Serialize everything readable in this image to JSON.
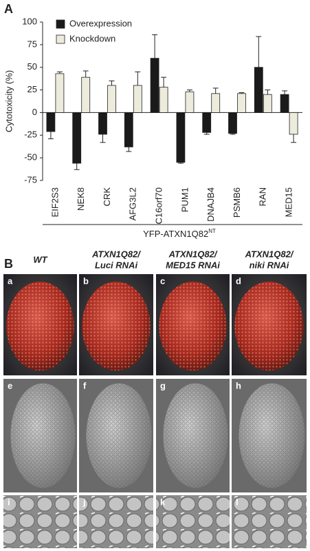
{
  "panel_a_label": "A",
  "chart_data": {
    "type": "bar",
    "ylabel": "Cytotoxicity (%)",
    "xlabel": "YFP-ATXN1Q82",
    "xlabel_superscript": "NT",
    "categories": [
      "EIF2S3",
      "NEK8",
      "CRK",
      "AFG3L2",
      "C16orf70",
      "PUM1",
      "DNAJB4",
      "PSMB6",
      "RAN",
      "MED15"
    ],
    "series": [
      {
        "name": "Overexpression",
        "color": "#1a1a1a",
        "values": [
          -21,
          -56,
          -24,
          -38,
          60,
          -55,
          -22,
          -23,
          50,
          20
        ],
        "errors": [
          8,
          7,
          9,
          5,
          26,
          1,
          2,
          1,
          34,
          4
        ]
      },
      {
        "name": "Knockdown",
        "color": "#ecebdc",
        "values": [
          43,
          39,
          30,
          30,
          28,
          23,
          21,
          21,
          20,
          -24
        ],
        "errors": [
          2,
          7,
          5,
          15,
          11,
          2,
          6,
          1,
          5,
          9
        ]
      }
    ],
    "ylim": [
      -75,
      100
    ],
    "yticks": [
      -75,
      -50,
      -25,
      0,
      25,
      50,
      75,
      100
    ],
    "legend": "upper left"
  },
  "panel_b": {
    "label": "B",
    "columns": [
      [
        "WT"
      ],
      [
        "ATXN1Q82/",
        "Luci RNAi"
      ],
      [
        "ATXN1Q82/",
        "MED15 RNAi"
      ],
      [
        "ATXN1Q82/",
        "niki RNAi"
      ]
    ],
    "tiles": [
      "a",
      "b",
      "c",
      "d",
      "e",
      "f",
      "g",
      "h",
      "i",
      "j",
      "k",
      "l"
    ]
  }
}
